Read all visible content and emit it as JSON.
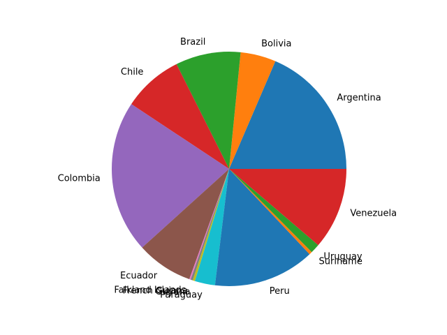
{
  "chart_data": {
    "type": "pie",
    "title": "",
    "start_angle_deg": 0,
    "direction": "counterclockwise",
    "categories": [
      "Argentina",
      "Bolivia",
      "Brazil",
      "Chile",
      "Colombia",
      "Ecuador",
      "Falkland Islands",
      "French Guiana",
      "Guyana",
      "Paraguay",
      "Peru",
      "Suriname",
      "Uruguay",
      "Venezuela"
    ],
    "values": [
      18.6,
      4.9,
      9.0,
      8.3,
      21.1,
      7.8,
      0.2,
      0.3,
      0.3,
      2.8,
      14.0,
      0.4,
      1.3,
      11.3
    ],
    "colors": [
      "#1f77b4",
      "#ff7f0e",
      "#2ca02c",
      "#d62728",
      "#9467bd",
      "#8c564b",
      "#e377c2",
      "#7f7f7f",
      "#bcbd22",
      "#17becf",
      "#1f77b4",
      "#ff7f0e",
      "#2ca02c",
      "#d62728"
    ]
  }
}
